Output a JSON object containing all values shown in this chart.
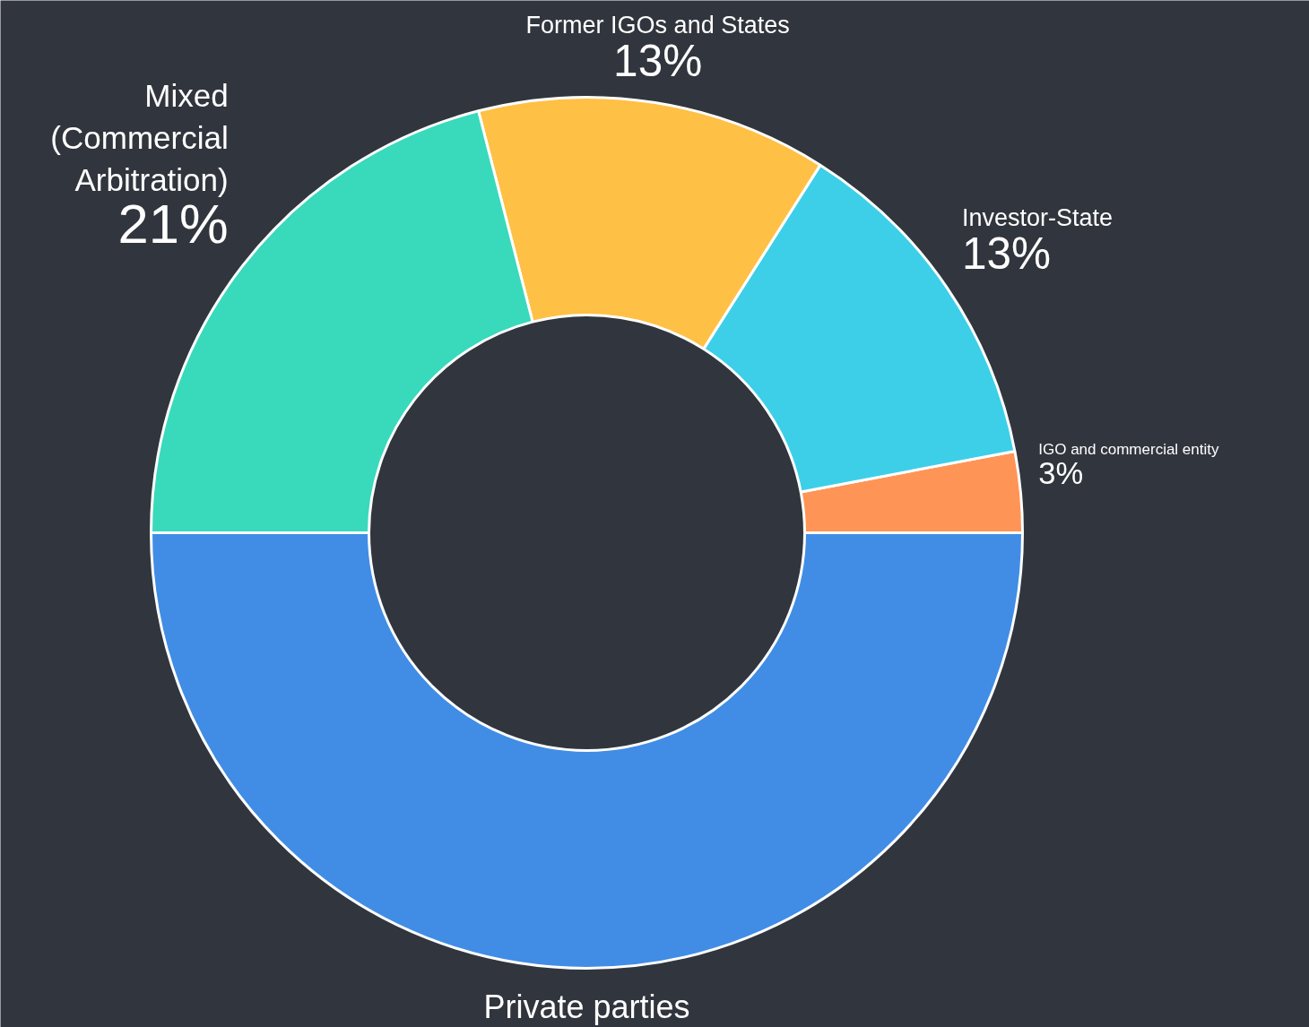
{
  "chart_data": {
    "type": "donut",
    "categories": [
      "IGO and commercial entity",
      "Investor-State",
      "Former IGOs and States",
      "Mixed (Commercial Arbitration)",
      "Private parties"
    ],
    "values": [
      3,
      13,
      13,
      21,
      50
    ],
    "colors": [
      "#ff9457",
      "#3dcfe8",
      "#ffc046",
      "#39d9bc",
      "#418de5"
    ],
    "value_labels": [
      "3%",
      "13%",
      "13%",
      "21%",
      null
    ]
  }
}
